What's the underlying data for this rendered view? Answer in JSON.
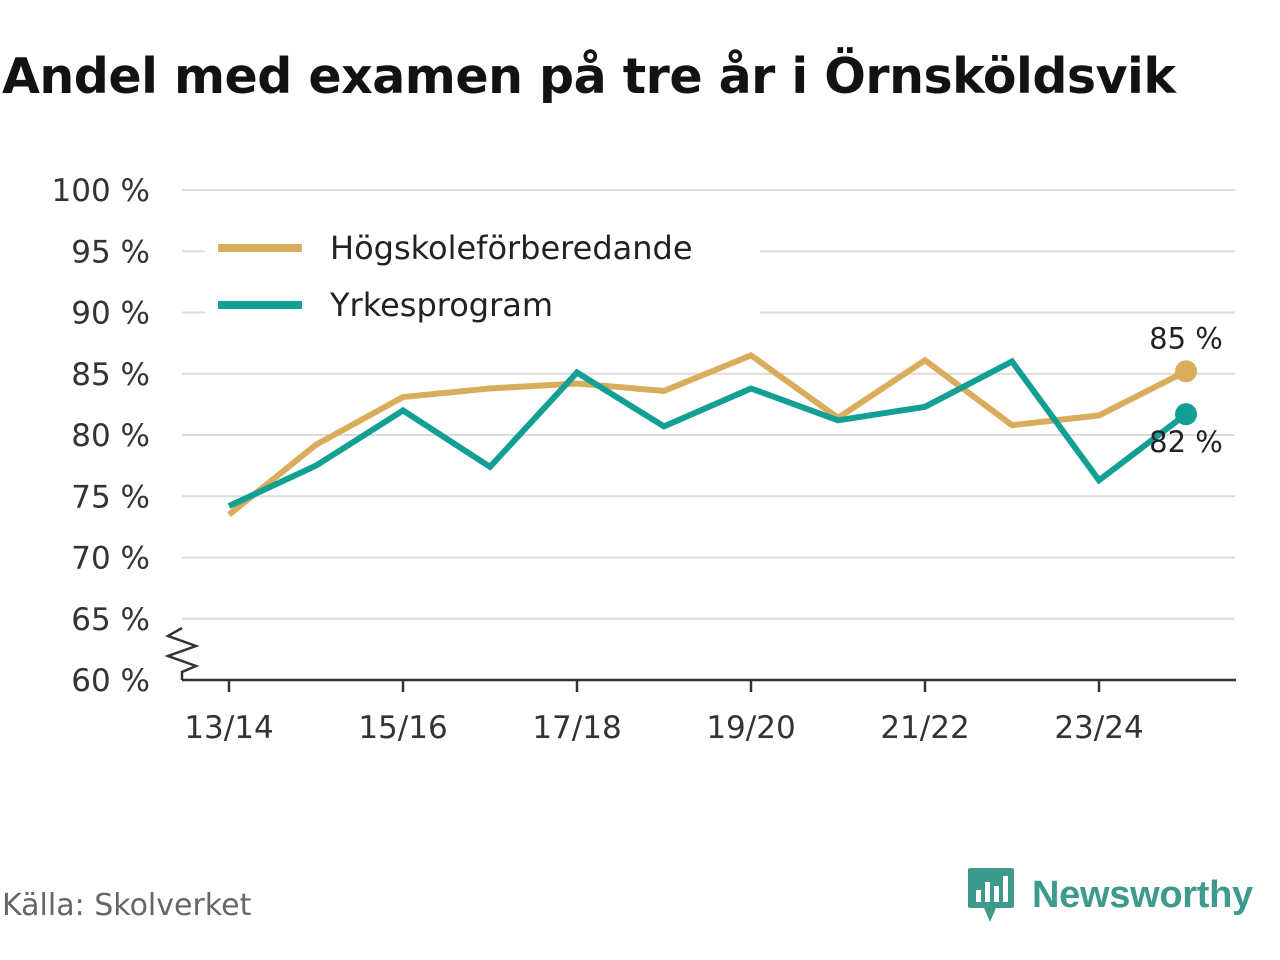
{
  "chart_data": {
    "type": "line",
    "title": "Andel med examen på tre år i Örnsköldsvik",
    "categories": [
      "13/14",
      "14/15",
      "15/16",
      "16/17",
      "17/18",
      "18/19",
      "19/20",
      "20/21",
      "21/22",
      "22/23",
      "23/24",
      "24/25"
    ],
    "x_tick_labels": [
      "13/14",
      "15/16",
      "17/18",
      "19/20",
      "21/22",
      "23/24"
    ],
    "y_ticks": [
      60,
      65,
      70,
      75,
      80,
      85,
      90,
      95,
      100
    ],
    "y_tick_suffix": " %",
    "ylim": [
      60,
      100
    ],
    "y_axis_break": true,
    "grid": true,
    "legend_position": "top-left",
    "series": [
      {
        "name": "Högskoleförberedande",
        "color": "#d9ad5b",
        "values": [
          73.5,
          79.2,
          83.1,
          83.8,
          84.2,
          83.6,
          86.5,
          81.4,
          86.1,
          80.8,
          81.6,
          85.2
        ],
        "end_label": "85 %"
      },
      {
        "name": "Yrkesprogram",
        "color": "#12a094",
        "values": [
          74.2,
          77.5,
          82.0,
          77.4,
          85.1,
          80.7,
          83.8,
          81.2,
          82.3,
          86.0,
          76.3,
          81.7
        ],
        "end_label": "82 %"
      }
    ]
  },
  "footer": {
    "source": "Källa: Skolverket",
    "brand": "Newsworthy",
    "brand_color": "#3f9a8e",
    "brand_icon": "bar-chart-badge-icon"
  }
}
